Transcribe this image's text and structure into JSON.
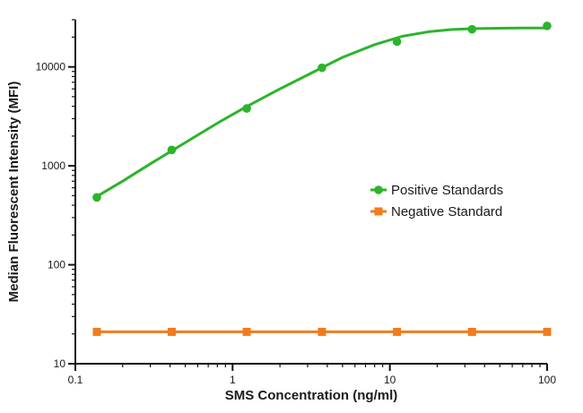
{
  "chart_data": {
    "type": "scatter",
    "title": "",
    "xlabel": "SMS Concentration (ng/ml)",
    "ylabel": "Median Fluorescent Intensity (MFI)",
    "x_scale": "log",
    "y_scale": "log",
    "xlim": [
      0.1,
      100
    ],
    "ylim": [
      10,
      30000
    ],
    "x_ticks": [
      "0.1",
      "1",
      "10",
      "100"
    ],
    "y_ticks": [
      "10",
      "100",
      "1000",
      "10000"
    ],
    "grid": false,
    "legend_position": "right-middle",
    "series": [
      {
        "name": "Positive Standards",
        "color": "#2bb52b",
        "marker": "circle",
        "x": [
          0.137,
          0.41,
          1.23,
          3.7,
          11.1,
          33.3,
          100
        ],
        "y": [
          480,
          1450,
          3800,
          9800,
          18000,
          24000,
          26000
        ],
        "fit_curve": {
          "x": [
            0.137,
            0.2,
            0.3,
            0.5,
            0.8,
            1.2,
            2,
            3,
            5,
            8,
            12,
            18,
            25,
            35,
            50,
            70,
            100
          ],
          "y": [
            490,
            700,
            1050,
            1720,
            2700,
            3900,
            6000,
            8300,
            12500,
            16800,
            20400,
            22800,
            23900,
            24400,
            24600,
            24700,
            24700
          ]
        }
      },
      {
        "name": "Negative Standard",
        "color": "#f07c1c",
        "marker": "square",
        "x": [
          0.137,
          0.41,
          1.23,
          3.7,
          11.1,
          33.3,
          100
        ],
        "y": [
          21,
          21,
          21,
          21,
          21,
          21,
          21
        ]
      }
    ]
  }
}
